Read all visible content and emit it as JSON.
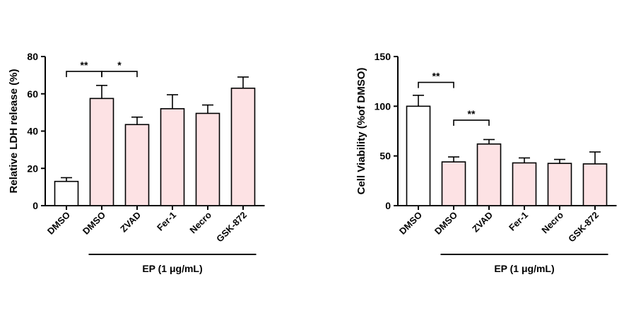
{
  "chart_data": [
    {
      "type": "bar",
      "ylabel": "Relative LDH release (%)",
      "ylim": [
        0,
        80
      ],
      "yticks": [
        "0",
        "20",
        "40",
        "60",
        "80"
      ],
      "categories": [
        "DMSO",
        "DMSO",
        "ZVAD",
        "Fer-1",
        "Necro",
        "GSK-872"
      ],
      "values": [
        13,
        57.5,
        43.5,
        52,
        49.5,
        63
      ],
      "errors": [
        2,
        7,
        4,
        7.5,
        4.5,
        6
      ],
      "fills": [
        "#ffffff",
        "#fde2e4",
        "#fde2e4",
        "#fde2e4",
        "#fde2e4",
        "#fde2e4"
      ],
      "group_label": "EP (1 μg/mL)",
      "group_span": [
        1,
        5
      ],
      "significance": [
        {
          "from": 0,
          "to": 1,
          "y": 72,
          "label": "**"
        },
        {
          "from": 1,
          "to": 2,
          "y": 72,
          "label": "*"
        }
      ]
    },
    {
      "type": "bar",
      "ylabel": "Cell Viability (%of DMSO)",
      "ylim": [
        0,
        150
      ],
      "yticks": [
        "0",
        "50",
        "100",
        "150"
      ],
      "categories": [
        "DMSO",
        "DMSO",
        "ZVAD",
        "Fer-1",
        "Necro",
        "GSK-872"
      ],
      "values": [
        100,
        44,
        62,
        43,
        42.5,
        42
      ],
      "errors": [
        11,
        5,
        4.5,
        5,
        4,
        12
      ],
      "fills": [
        "#ffffff",
        "#fde2e4",
        "#fde2e4",
        "#fde2e4",
        "#fde2e4",
        "#fde2e4"
      ],
      "group_label": "EP (1 μg/mL)",
      "group_span": [
        1,
        5
      ],
      "significance": [
        {
          "from": 0,
          "to": 1,
          "y": 124,
          "label": "**"
        },
        {
          "from": 1,
          "to": 2,
          "y": 86,
          "label": "**"
        }
      ]
    }
  ]
}
